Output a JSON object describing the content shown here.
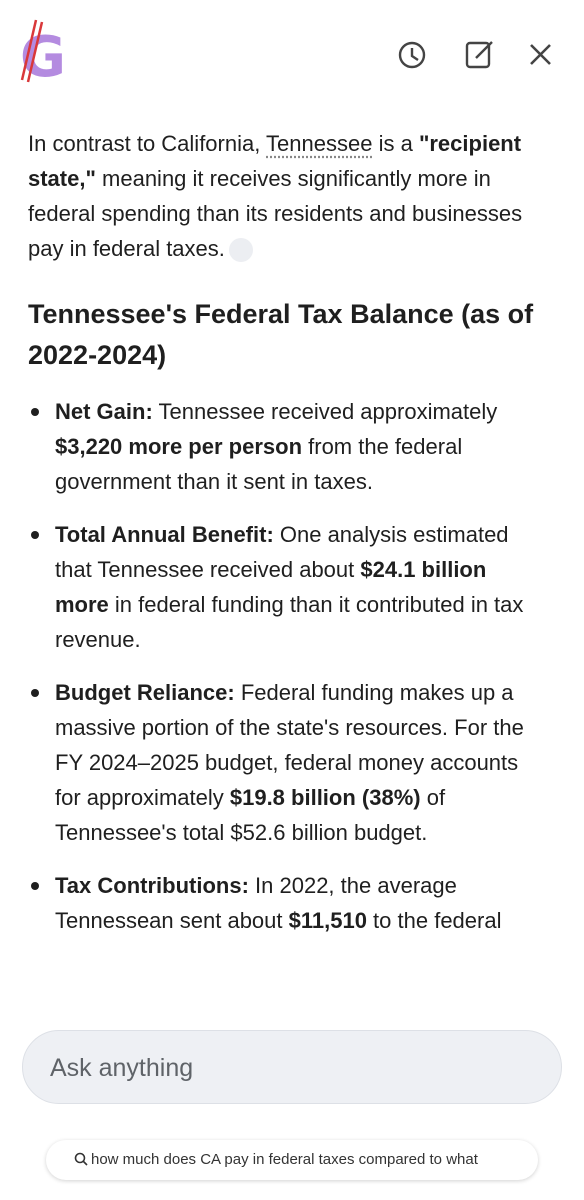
{
  "intro": {
    "runs": [
      {
        "text": "In contrast to California, ",
        "style": "plain"
      },
      {
        "text": "Tennessee",
        "style": "underline"
      },
      {
        "text": " is a ",
        "style": "plain"
      },
      {
        "text": "\"recipient state,\"",
        "style": "bold"
      },
      {
        "text": " meaning it receives significantly more in federal spending than its residents and businesses pay in federal taxes.",
        "style": "plain"
      }
    ]
  },
  "heading": "Tennessee's Federal Tax Balance (as of 2022-2024)",
  "bullets": [
    {
      "runs": [
        {
          "text": "Net Gain:",
          "style": "bold"
        },
        {
          "text": " Tennessee received approximately ",
          "style": "plain"
        },
        {
          "text": "$3,220 more per person",
          "style": "bold"
        },
        {
          "text": " from the federal government than it sent in taxes.",
          "style": "plain"
        }
      ]
    },
    {
      "runs": [
        {
          "text": "Total Annual Benefit:",
          "style": "bold"
        },
        {
          "text": " One analysis estimated that Tennessee received about ",
          "style": "plain"
        },
        {
          "text": "$24.1 billion more",
          "style": "bold"
        },
        {
          "text": " in federal funding than it contributed in tax revenue.",
          "style": "plain"
        }
      ]
    },
    {
      "runs": [
        {
          "text": "Budget Reliance:",
          "style": "bold"
        },
        {
          "text": " Federal funding makes up a massive portion of the state's resources. For the FY 2024–2025 budget, federal money accounts for approximately ",
          "style": "plain"
        },
        {
          "text": "$19.8 billion (38%)",
          "style": "bold"
        },
        {
          "text": " of Tennessee's total $52.6 billion budget.",
          "style": "plain"
        }
      ]
    },
    {
      "runs": [
        {
          "text": "Tax Contributions:",
          "style": "bold"
        },
        {
          "text": " In 2022, the average Tennessean sent about ",
          "style": "plain"
        },
        {
          "text": "$11,510",
          "style": "bold"
        },
        {
          "text": " to the federal",
          "style": "plain"
        }
      ]
    }
  ],
  "input": {
    "placeholder": "Ask anything"
  },
  "suggestion": "how much does CA pay in federal taxes compared to what"
}
